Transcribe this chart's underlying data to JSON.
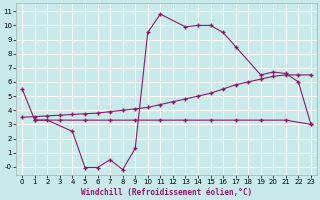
{
  "xlabel": "Windchill (Refroidissement éolien,°C)",
  "background_color": "#c8eaea",
  "grid_color": "#ffffff",
  "line_color": "#8b1a6b",
  "x_ticks": [
    0,
    1,
    2,
    3,
    4,
    5,
    6,
    7,
    8,
    9,
    10,
    11,
    12,
    13,
    14,
    15,
    16,
    17,
    18,
    19,
    20,
    21,
    22,
    23
  ],
  "y_ticks": [
    0,
    1,
    2,
    3,
    4,
    5,
    6,
    7,
    8,
    9,
    10,
    11
  ],
  "ylim": [
    -0.6,
    11.6
  ],
  "xlim": [
    -0.5,
    23.5
  ],
  "line1_x": [
    0,
    1,
    2,
    4,
    5,
    6,
    7,
    8,
    9,
    10,
    11,
    13,
    14,
    15,
    16,
    17,
    19,
    20,
    21,
    22,
    23
  ],
  "line1_y": [
    5.5,
    3.3,
    3.3,
    2.5,
    -0.05,
    -0.05,
    0.5,
    -0.2,
    1.3,
    9.5,
    10.8,
    9.9,
    10.0,
    10.0,
    9.5,
    8.5,
    6.5,
    6.7,
    6.6,
    6.0,
    3.0
  ],
  "line2_x": [
    0,
    1,
    2,
    3,
    4,
    5,
    6,
    7,
    8,
    9,
    10,
    11,
    12,
    13,
    14,
    15,
    16,
    17,
    18,
    19,
    20,
    21,
    22,
    23
  ],
  "line2_y": [
    3.5,
    3.55,
    3.6,
    3.65,
    3.7,
    3.75,
    3.8,
    3.9,
    4.0,
    4.1,
    4.2,
    4.4,
    4.6,
    4.8,
    5.0,
    5.2,
    5.5,
    5.8,
    6.0,
    6.2,
    6.4,
    6.5,
    6.5,
    6.5
  ],
  "line3_x": [
    1,
    3,
    5,
    7,
    9,
    11,
    13,
    15,
    17,
    19,
    21,
    23
  ],
  "line3_y": [
    3.3,
    3.3,
    3.3,
    3.3,
    3.3,
    3.3,
    3.3,
    3.3,
    3.3,
    3.3,
    3.3,
    3.0
  ],
  "marker": "+",
  "markersize": 3,
  "linewidth": 0.8,
  "tick_fontsize": 5,
  "xlabel_fontsize": 5.5
}
